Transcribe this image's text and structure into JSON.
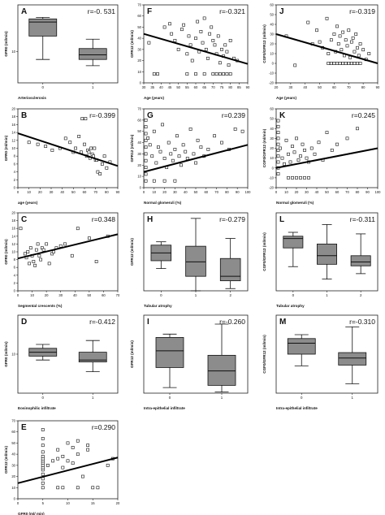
{
  "chart_data": [
    {
      "id": "A",
      "type": "box",
      "panel_letter": "A",
      "r_label": "r=-0. 531",
      "ylabel": "GFR0 (ml/min)",
      "xlabel": "Arteriosclerosis",
      "ylim": [
        0,
        25
      ],
      "yticks": [
        {
          "v": 10,
          "label": "10"
        }
      ],
      "categories": [
        "0",
        "1"
      ],
      "boxes": [
        {
          "min": 7.5,
          "q1": 15,
          "median": 19.5,
          "q3": 20.5,
          "max": 21
        },
        {
          "min": 5.5,
          "q1": 7.5,
          "median": 9,
          "q3": 11,
          "max": 14
        }
      ]
    },
    {
      "id": "B",
      "type": "scatter",
      "panel_letter": "B",
      "r_label": "r=-0.399",
      "ylabel": "GFR0 (ml/min)",
      "xlabel": "age (years)",
      "xlim": [
        0,
        90
      ],
      "ylim": [
        0,
        20
      ],
      "xticks": [
        0,
        10,
        20,
        30,
        40,
        50,
        60,
        70,
        80,
        90
      ],
      "yticks": [
        0,
        2,
        4,
        6,
        8,
        10,
        12,
        14,
        16,
        18,
        20
      ],
      "line": {
        "x1": 0,
        "y1": 13.8,
        "x2": 90,
        "y2": 5.5
      },
      "x": [
        10,
        18,
        25,
        31,
        38,
        43,
        47,
        50,
        52,
        55,
        57,
        58,
        60,
        61,
        62,
        63,
        64,
        65,
        66,
        67,
        68,
        69,
        70,
        71,
        72,
        74,
        76,
        78,
        80,
        83
      ],
      "y": [
        11.5,
        11,
        10.5,
        9.5,
        10,
        12.5,
        11.5,
        9,
        10,
        13,
        9,
        17.5,
        11,
        17.5,
        8,
        9.5,
        9,
        7.5,
        10,
        8.5,
        8,
        10,
        7,
        7,
        4,
        3.5,
        6,
        8,
        5,
        6.5
      ]
    },
    {
      "id": "C",
      "type": "scatter",
      "panel_letter": "C",
      "r_label": "r=0.348",
      "ylabel": "GFR0 (ml/min)",
      "xlabel": "Segmental crescents (%)",
      "xlim": [
        0,
        70
      ],
      "ylim": [
        0,
        20
      ],
      "xticks": [
        0,
        10,
        20,
        30,
        40,
        50,
        60,
        70
      ],
      "yticks": [
        0,
        2,
        4,
        6,
        8,
        10,
        12,
        14,
        16,
        18,
        20
      ],
      "line": {
        "x1": 0,
        "y1": 8.3,
        "x2": 70,
        "y2": 14.5
      },
      "x": [
        2,
        5,
        6,
        7,
        8,
        9,
        10,
        11,
        12,
        13,
        14,
        15,
        16,
        17,
        18,
        20,
        22,
        24,
        25,
        27,
        30,
        33,
        38,
        42,
        50,
        55,
        63
      ],
      "y": [
        16,
        9.5,
        8.5,
        10,
        7,
        11,
        9,
        7.5,
        6.5,
        10.5,
        12,
        9,
        8,
        11,
        10.5,
        12,
        7,
        9.5,
        10,
        11,
        11.5,
        12,
        9,
        16,
        13.5,
        7.5,
        14
      ]
    },
    {
      "id": "D",
      "type": "box",
      "panel_letter": "D",
      "r_label": "r=-0.412",
      "ylabel": "GFR0 (ml/min)",
      "xlabel": "Eosinophilic infiltrate",
      "ylim": [
        0,
        20
      ],
      "yticks": [
        {
          "v": 10,
          "label": "10"
        }
      ],
      "categories": [
        "0",
        "1"
      ],
      "boxes": [
        {
          "min": 8.5,
          "q1": 9.5,
          "median": 10.5,
          "q3": 11.5,
          "max": 12.5
        },
        {
          "min": 5.5,
          "q1": 8,
          "median": 8.5,
          "q3": 10.5,
          "max": 13.5
        }
      ]
    },
    {
      "id": "E",
      "type": "scatter",
      "panel_letter": "E",
      "r_label": "r=0.290",
      "ylabel": "GFR12 (ml/min)",
      "xlabel": "GFR0 (ml/ min)",
      "xlim": [
        0,
        20
      ],
      "ylim": [
        0,
        70
      ],
      "xticks": [
        0,
        5,
        10,
        15,
        20
      ],
      "yticks": [
        0,
        10,
        20,
        30,
        40,
        50,
        60,
        70
      ],
      "line": {
        "x1": 0,
        "y1": 14,
        "x2": 20,
        "y2": 37
      },
      "x": [
        5,
        5,
        5,
        5,
        5,
        5,
        5,
        5,
        5,
        5,
        5,
        5,
        5,
        5,
        5,
        6,
        7,
        8,
        8,
        9,
        9,
        10,
        10,
        11,
        11,
        12,
        12,
        13,
        14,
        14,
        18,
        19,
        8,
        9,
        12,
        15,
        16
      ],
      "y": [
        10,
        14,
        18,
        22,
        26,
        28,
        30,
        32,
        34,
        36,
        38,
        42,
        48,
        54,
        62,
        30,
        34,
        44,
        36,
        28,
        38,
        34,
        50,
        46,
        32,
        52,
        40,
        20,
        48,
        44,
        30,
        36,
        10,
        10,
        10,
        10,
        10
      ]
    },
    {
      "id": "F",
      "type": "scatter",
      "panel_letter": "F",
      "r_label": "r=-0.321",
      "ylabel": "GFR12 (ml/min)",
      "xlabel": "Age (years)",
      "xlim": [
        30,
        90
      ],
      "ylim": [
        0,
        70
      ],
      "xticks": [
        30,
        35,
        40,
        45,
        50,
        55,
        60,
        65,
        70,
        75,
        80,
        85,
        90
      ],
      "yticks": [
        0,
        10,
        20,
        30,
        40,
        50,
        60,
        70
      ],
      "line": {
        "x1": 30,
        "y1": 44,
        "x2": 90,
        "y2": 17
      },
      "x": [
        33,
        36,
        42,
        45,
        46,
        48,
        50,
        52,
        53,
        55,
        56,
        57,
        58,
        60,
        61,
        62,
        63,
        64,
        65,
        66,
        67,
        68,
        69,
        70,
        71,
        72,
        73,
        74,
        75,
        76,
        77,
        78,
        79,
        80,
        82,
        84,
        38,
        55,
        60,
        65,
        70,
        72,
        74,
        76,
        78,
        80
      ],
      "y": [
        36,
        8,
        50,
        53,
        44,
        38,
        30,
        48,
        52,
        26,
        42,
        34,
        20,
        40,
        55,
        28,
        46,
        36,
        58,
        30,
        22,
        44,
        50,
        38,
        34,
        26,
        42,
        18,
        30,
        24,
        34,
        28,
        16,
        38,
        22,
        20,
        8,
        8,
        8,
        8,
        8,
        8,
        8,
        8,
        8,
        8
      ]
    },
    {
      "id": "G",
      "type": "scatter",
      "panel_letter": "G",
      "r_label": "r=0.239",
      "ylabel": "GFR12 (ml/min)",
      "xlabel": "Normal glomeruli (%)",
      "xlim": [
        0,
        100
      ],
      "ylim": [
        0,
        70
      ],
      "xticks": [
        0,
        10,
        20,
        30,
        40,
        50,
        60,
        70,
        80,
        90,
        100
      ],
      "yticks": [
        0,
        10,
        20,
        30,
        40,
        50,
        60,
        70
      ],
      "line": {
        "x1": 0,
        "y1": 14,
        "x2": 100,
        "y2": 38
      },
      "x": [
        2,
        2,
        2,
        2,
        2,
        2,
        2,
        2,
        2,
        2,
        4,
        6,
        8,
        10,
        12,
        14,
        16,
        18,
        20,
        22,
        24,
        26,
        28,
        30,
        32,
        34,
        36,
        38,
        40,
        42,
        45,
        48,
        50,
        52,
        55,
        58,
        62,
        68,
        75,
        82,
        88,
        95,
        10,
        20,
        30
      ],
      "y": [
        6,
        12,
        18,
        24,
        30,
        36,
        42,
        48,
        54,
        60,
        44,
        38,
        28,
        50,
        22,
        36,
        32,
        56,
        26,
        18,
        40,
        30,
        24,
        34,
        46,
        28,
        20,
        38,
        32,
        26,
        52,
        30,
        22,
        42,
        36,
        28,
        34,
        46,
        40,
        34,
        52,
        50,
        6,
        6,
        6
      ]
    },
    {
      "id": "H",
      "type": "box",
      "panel_letter": "H",
      "r_label": "r=-0.279",
      "ylabel": "GFR12 (ml/min)",
      "xlabel": "Tubular atrophy",
      "ylim": [
        0,
        70
      ],
      "yticks": [],
      "categories": [
        "0",
        "1",
        "2"
      ],
      "boxes": [
        {
          "min": 20,
          "q1": 27,
          "median": 34,
          "q3": 41,
          "max": 44
        },
        {
          "min": 0,
          "q1": 13,
          "median": 26,
          "q3": 40,
          "max": 65
        },
        {
          "min": 2,
          "q1": 9,
          "median": 13,
          "q3": 29,
          "max": 47
        }
      ]
    },
    {
      "id": "I",
      "type": "box",
      "panel_letter": "I",
      "r_label": "r=-0.260",
      "ylabel": "GFR12 (ml/min)",
      "xlabel": "Intra-epithelial infiltrate",
      "ylim": [
        0,
        70
      ],
      "yticks": [],
      "categories": [
        "0",
        "1"
      ],
      "boxes": [
        {
          "min": 5,
          "q1": 23,
          "median": 38,
          "q3": 50,
          "max": 53
        },
        {
          "min": 1,
          "q1": 7,
          "median": 20,
          "q3": 34,
          "max": 62
        }
      ]
    },
    {
      "id": "J",
      "type": "scatter",
      "panel_letter": "J",
      "r_label": "r=-0.319",
      "ylabel": "CGF0/GFR12 (ml/min)",
      "xlabel": "Age (years)",
      "xlim": [
        20,
        90
      ],
      "ylim": [
        -20,
        60
      ],
      "xticks": [
        20,
        30,
        40,
        50,
        60,
        70,
        80,
        90
      ],
      "yticks": [
        -20,
        -10,
        0,
        10,
        20,
        30,
        40,
        50,
        60
      ],
      "line": {
        "x1": 20,
        "y1": 30,
        "x2": 90,
        "y2": 0
      },
      "x": [
        27,
        33,
        42,
        45,
        48,
        50,
        52,
        55,
        56,
        58,
        60,
        61,
        62,
        63,
        64,
        65,
        66,
        67,
        68,
        69,
        70,
        71,
        72,
        73,
        74,
        75,
        76,
        77,
        78,
        80,
        82,
        84,
        56,
        58,
        60,
        62,
        64,
        66,
        68,
        70,
        72,
        74,
        76,
        78
      ],
      "y": [
        28,
        -2,
        42,
        20,
        34,
        22,
        16,
        46,
        10,
        24,
        30,
        12,
        38,
        20,
        28,
        14,
        32,
        8,
        24,
        18,
        34,
        6,
        22,
        26,
        12,
        30,
        16,
        8,
        20,
        14,
        4,
        10,
        0,
        0,
        0,
        0,
        0,
        0,
        0,
        0,
        0,
        0,
        0,
        0
      ]
    },
    {
      "id": "K",
      "type": "scatter",
      "panel_letter": "K",
      "r_label": "r=0.245",
      "ylabel": "CGF0/GFR12 (ml/min)",
      "xlabel": "Normal glomeruli (%)",
      "xlim": [
        0,
        100
      ],
      "ylim": [
        -20,
        60
      ],
      "xticks": [
        0,
        10,
        20,
        30,
        40,
        50,
        60,
        70,
        80,
        90,
        100
      ],
      "yticks": [
        -20,
        -10,
        0,
        10,
        20,
        30,
        40,
        50,
        60
      ],
      "line": {
        "x1": 0,
        "y1": 0,
        "x2": 100,
        "y2": 20
      },
      "x": [
        2,
        2,
        2,
        2,
        2,
        2,
        2,
        2,
        2,
        2,
        4,
        6,
        8,
        10,
        12,
        14,
        16,
        18,
        20,
        22,
        24,
        26,
        28,
        30,
        32,
        35,
        38,
        42,
        46,
        50,
        55,
        60,
        70,
        80,
        12,
        16,
        20,
        24,
        28,
        32
      ],
      "y": [
        -6,
        0,
        6,
        12,
        18,
        24,
        30,
        36,
        42,
        48,
        20,
        10,
        4,
        28,
        14,
        6,
        22,
        16,
        30,
        8,
        12,
        24,
        18,
        10,
        6,
        20,
        14,
        26,
        8,
        36,
        18,
        24,
        30,
        40,
        -10,
        -10,
        -10,
        -10,
        -10,
        -10
      ]
    },
    {
      "id": "L",
      "type": "box",
      "panel_letter": "L",
      "r_label": "r=-0.311",
      "ylabel": "CGF0/GFR12 (ml/min)",
      "xlabel": "Tubular atrophy",
      "ylim": [
        -40,
        60
      ],
      "yticks": [],
      "categories": [
        "0",
        "1",
        "2"
      ],
      "boxes": [
        {
          "min": -9,
          "q1": 15,
          "median": 27,
          "q3": 30,
          "max": 35
        },
        {
          "min": -25,
          "q1": -6,
          "median": 5,
          "q3": 20,
          "max": 45
        },
        {
          "min": -18,
          "q1": -8,
          "median": -3,
          "q3": 5,
          "max": 33
        }
      ]
    },
    {
      "id": "M",
      "type": "box",
      "panel_letter": "M",
      "r_label": "r=-0.310",
      "ylabel": "CGF0/GFR12 (ml/min)",
      "xlabel": "Intra-epithelial infiltrate",
      "ylim": [
        -40,
        60
      ],
      "yticks": [],
      "categories": [
        "0",
        "1"
      ],
      "boxes": [
        {
          "min": -5,
          "q1": 10,
          "median": 24,
          "q3": 30,
          "max": 35
        },
        {
          "min": -28,
          "q1": -4,
          "median": 5,
          "q3": 12,
          "max": 45
        }
      ]
    }
  ]
}
